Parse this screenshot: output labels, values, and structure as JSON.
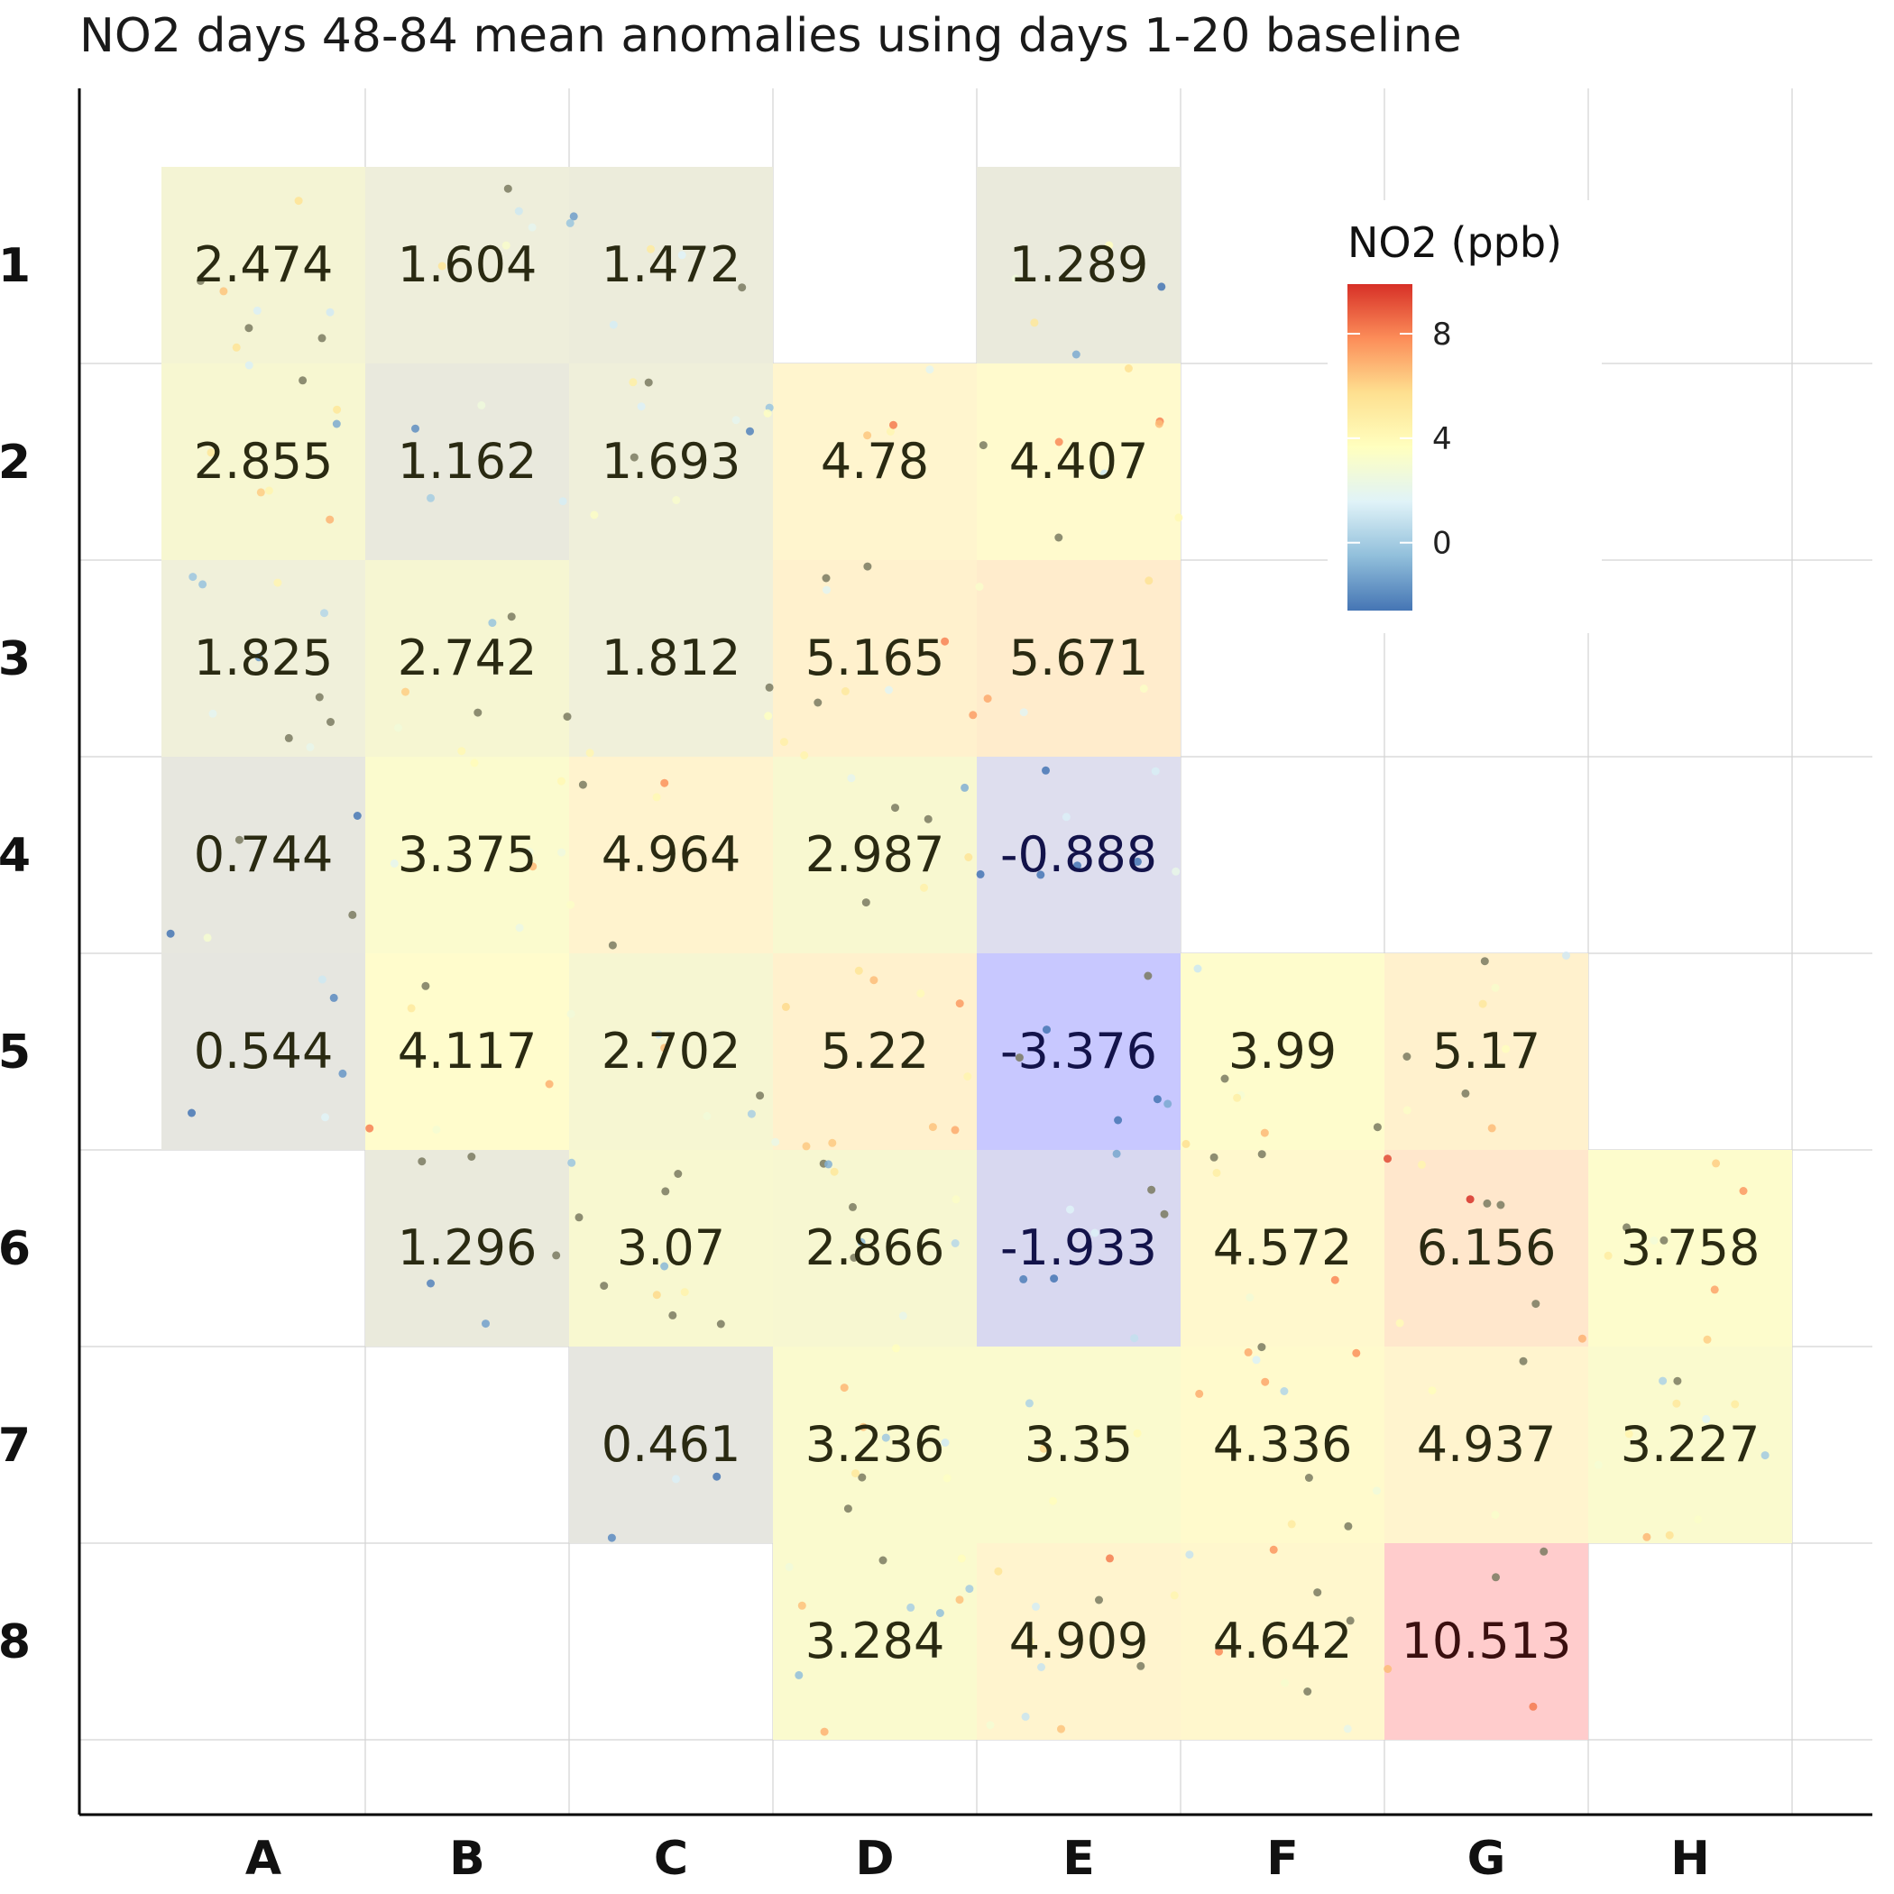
{
  "chart_data": {
    "type": "heatmap",
    "title": "NO2 days 48-84 mean anomalies using days 1-20 baseline",
    "xlabel": "",
    "ylabel": "",
    "columns": [
      "A",
      "B",
      "C",
      "D",
      "E",
      "F",
      "G",
      "H"
    ],
    "rows": [
      "1",
      "2",
      "3",
      "4",
      "5",
      "6",
      "7",
      "8"
    ],
    "cells": [
      {
        "col": "A",
        "row": "1",
        "value": 2.474
      },
      {
        "col": "B",
        "row": "1",
        "value": 1.604
      },
      {
        "col": "C",
        "row": "1",
        "value": 1.472
      },
      {
        "col": "E",
        "row": "1",
        "value": 1.289
      },
      {
        "col": "A",
        "row": "2",
        "value": 2.855
      },
      {
        "col": "B",
        "row": "2",
        "value": 1.162
      },
      {
        "col": "C",
        "row": "2",
        "value": 1.693
      },
      {
        "col": "D",
        "row": "2",
        "value": 4.78
      },
      {
        "col": "E",
        "row": "2",
        "value": 4.407
      },
      {
        "col": "A",
        "row": "3",
        "value": 1.825
      },
      {
        "col": "B",
        "row": "3",
        "value": 2.742
      },
      {
        "col": "C",
        "row": "3",
        "value": 1.812
      },
      {
        "col": "D",
        "row": "3",
        "value": 5.165
      },
      {
        "col": "E",
        "row": "3",
        "value": 5.671
      },
      {
        "col": "A",
        "row": "4",
        "value": 0.744
      },
      {
        "col": "B",
        "row": "4",
        "value": 3.375
      },
      {
        "col": "C",
        "row": "4",
        "value": 4.964
      },
      {
        "col": "D",
        "row": "4",
        "value": 2.987
      },
      {
        "col": "E",
        "row": "4",
        "value": -0.888
      },
      {
        "col": "A",
        "row": "5",
        "value": 0.544
      },
      {
        "col": "B",
        "row": "5",
        "value": 4.117
      },
      {
        "col": "C",
        "row": "5",
        "value": 2.702
      },
      {
        "col": "D",
        "row": "5",
        "value": 5.22
      },
      {
        "col": "E",
        "row": "5",
        "value": -3.376
      },
      {
        "col": "F",
        "row": "5",
        "value": 3.99
      },
      {
        "col": "G",
        "row": "5",
        "value": 5.17
      },
      {
        "col": "B",
        "row": "6",
        "value": 1.296
      },
      {
        "col": "C",
        "row": "6",
        "value": 3.07
      },
      {
        "col": "D",
        "row": "6",
        "value": 2.866
      },
      {
        "col": "E",
        "row": "6",
        "value": -1.933
      },
      {
        "col": "F",
        "row": "6",
        "value": 4.572
      },
      {
        "col": "G",
        "row": "6",
        "value": 6.156
      },
      {
        "col": "H",
        "row": "6",
        "value": 3.758
      },
      {
        "col": "C",
        "row": "7",
        "value": 0.461
      },
      {
        "col": "D",
        "row": "7",
        "value": 3.236
      },
      {
        "col": "E",
        "row": "7",
        "value": 3.35
      },
      {
        "col": "F",
        "row": "7",
        "value": 4.336
      },
      {
        "col": "G",
        "row": "7",
        "value": 4.937
      },
      {
        "col": "H",
        "row": "7",
        "value": 3.227
      },
      {
        "col": "D",
        "row": "8",
        "value": 3.284
      },
      {
        "col": "E",
        "row": "8",
        "value": 4.909
      },
      {
        "col": "F",
        "row": "8",
        "value": 4.642
      },
      {
        "col": "G",
        "row": "8",
        "value": 10.513
      }
    ],
    "legend": {
      "title": "NO2 (ppb)",
      "ticks": [
        0,
        4,
        8
      ],
      "range": [
        -2.6,
        9.9
      ],
      "placement": "top-right",
      "colors": [
        "#4575b4",
        "#91bfdb",
        "#e0f3f8",
        "#ffffbf",
        "#fee090",
        "#fc8d59",
        "#d73027"
      ]
    },
    "grid": true
  }
}
